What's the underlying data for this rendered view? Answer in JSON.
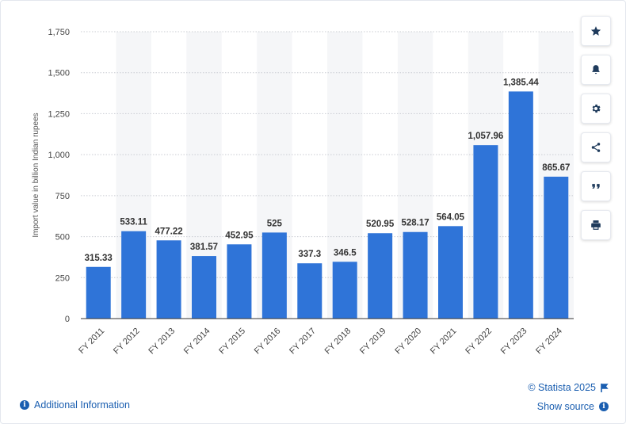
{
  "chart_data": {
    "type": "bar",
    "categories": [
      "FY 2011",
      "FY 2012",
      "FY 2013",
      "FY 2014",
      "FY 2015",
      "FY 2016",
      "FY 2017",
      "FY 2018",
      "FY 2019",
      "FY 2020",
      "FY 2021",
      "FY 2022",
      "FY 2023",
      "FY 2024"
    ],
    "values": [
      315.33,
      533.11,
      477.22,
      381.57,
      452.95,
      525,
      337.3,
      346.5,
      520.95,
      528.17,
      564.05,
      1057.96,
      1385.44,
      865.67
    ],
    "value_labels": [
      "315.33",
      "533.11",
      "477.22",
      "381.57",
      "452.95",
      "525",
      "337.3",
      "346.5",
      "520.95",
      "528.17",
      "564.05",
      "1,057.96",
      "1,385.44",
      "865.67"
    ],
    "ylabel": "Import value in billion Indian rupees",
    "xlabel": "",
    "ylim": [
      0,
      1750
    ],
    "y_ticks": [
      0,
      250,
      500,
      750,
      1000,
      1250,
      1500,
      1750
    ],
    "y_tick_labels": [
      "0",
      "250",
      "500",
      "750",
      "1,000",
      "1,250",
      "1,500",
      "1,750"
    ],
    "grid": true,
    "bar_color": "#2f74d8"
  },
  "toolbar": {
    "buttons": [
      "star-icon",
      "bell-icon",
      "gear-icon",
      "share-icon",
      "quote-icon",
      "print-icon"
    ]
  },
  "footer": {
    "additional_info": "Additional Information",
    "copyright": "© Statista 2025",
    "show_source": "Show source"
  },
  "colors": {
    "accent": "#1a5eb0",
    "bar": "#2f74d8"
  }
}
